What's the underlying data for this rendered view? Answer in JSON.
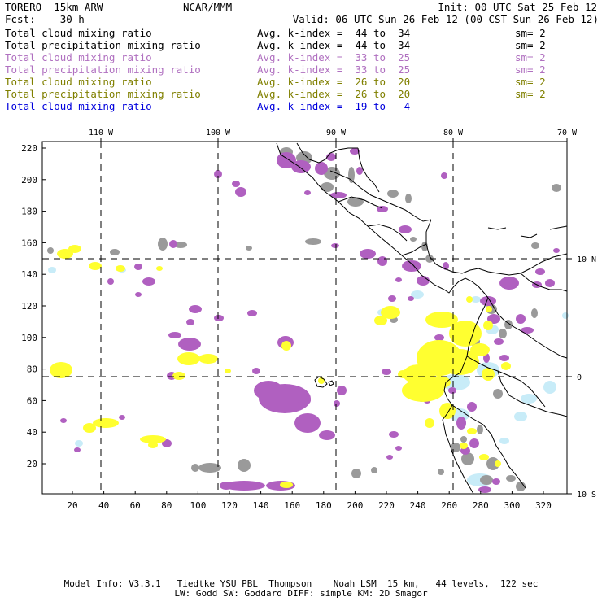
{
  "header": {
    "model": "TORERO  15km ARW",
    "org": "NCAR/MMM",
    "init": "Init: 00 UTC Sat 25 Feb 12",
    "fcst": "Fcst:    30 h",
    "valid": "Valid: 06 UTC Sun 26 Feb 12 (00 CST Sun 26 Feb 12)"
  },
  "legend": [
    {
      "label": "Total cloud mixing ratio",
      "index": "Avg. k-index =  44 to  34",
      "sm": "sm= 2",
      "color": "#000000"
    },
    {
      "label": "Total precipitation mixing ratio",
      "index": "Avg. k-index =  44 to  34",
      "sm": "sm= 2",
      "color": "#000000"
    },
    {
      "label": "Total cloud mixing ratio",
      "index": "Avg. k-index =  33 to  25",
      "sm": "sm= 2",
      "color": "#b070c0"
    },
    {
      "label": "Total precipitation mixing ratio",
      "index": "Avg. k-index =  33 to  25",
      "sm": "sm= 2",
      "color": "#b070c0"
    },
    {
      "label": "Total cloud mixing ratio",
      "index": "Avg. k-index =  26 to  20",
      "sm": "sm= 2",
      "color": "#808000"
    },
    {
      "label": "Total precipitation mixing ratio",
      "index": "Avg. k-index =  26 to  20",
      "sm": "sm= 2",
      "color": "#808000"
    },
    {
      "label": "Total cloud mixing ratio",
      "index": "Avg. k-index =  19 to   4",
      "sm": "",
      "color": "#0000dd"
    }
  ],
  "map": {
    "top_labels": [
      "110 W",
      "100 W",
      "90 W",
      "80 W",
      "70 W"
    ],
    "right_labels": [
      "10 N",
      "0",
      "10 S"
    ],
    "left_ticks": [
      "220",
      "200",
      "180",
      "160",
      "140",
      "120",
      "100",
      "80",
      "60",
      "40",
      "20"
    ],
    "bottom_ticks": [
      "20",
      "40",
      "60",
      "80",
      "100",
      "120",
      "140",
      "160",
      "180",
      "200",
      "220",
      "240",
      "260",
      "280",
      "300",
      "320"
    ],
    "colors": {
      "gray": "#9a9a9a",
      "purple": "#b060c0",
      "yellow": "#ffff30",
      "lightblue": "#c8ecf8",
      "coast": "#000000"
    }
  },
  "footer": {
    "line1": "Model Info: V3.3.1   Tiedtke YSU PBL  Thompson    Noah LSM  15 km,   44 levels,  122 sec",
    "line2": "LW: Godd SW: Goddard DIFF: simple KM: 2D Smagor"
  }
}
